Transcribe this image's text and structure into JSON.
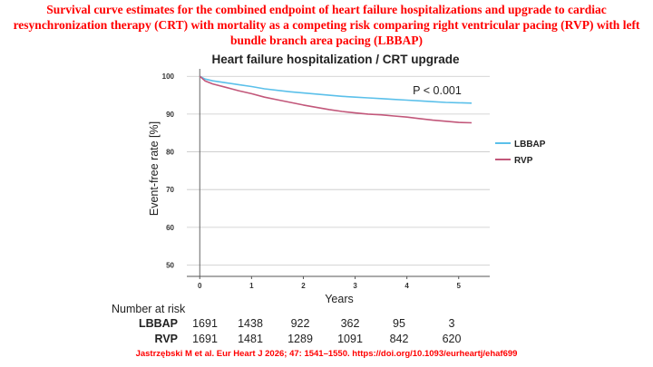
{
  "title": "Survival curve estimates for the combined endpoint of heart failure hospitalizations and upgrade to cardiac resynchronization therapy (CRT) with mortality as a competing risk comparing right ventricular pacing (RVP) with left bundle branch area pacing (LBBAP)",
  "citation": "Jastrzębski M et al.  Eur Heart J 2026; 47: 1541–1550. https://doi.org/10.1093/eurheartj/ehaf699",
  "chart_data": {
    "type": "line",
    "title": "Heart failure hospitalization / CRT upgrade",
    "xlabel": "Years",
    "ylabel": "Event-free rate [%]",
    "xlim": [
      -0.25,
      5.6
    ],
    "ylim": [
      47,
      101.5
    ],
    "x_ticks": [
      0,
      1,
      2,
      3,
      4,
      5
    ],
    "y_ticks": [
      50,
      60,
      70,
      80,
      90,
      100
    ],
    "grid": "horizontal",
    "legend": "right",
    "annotation": "P < 0.001",
    "series": [
      {
        "name": "LBBAP",
        "color": "#5bc0ea",
        "x": [
          0,
          0.1,
          0.25,
          0.5,
          0.75,
          1,
          1.25,
          1.5,
          1.75,
          2,
          2.25,
          2.5,
          2.75,
          3,
          3.25,
          3.5,
          3.75,
          4,
          4.25,
          4.5,
          4.75,
          5,
          5.25
        ],
        "y": [
          100,
          99.3,
          98.8,
          98.3,
          97.8,
          97.3,
          96.7,
          96.3,
          95.9,
          95.6,
          95.3,
          95.0,
          94.7,
          94.5,
          94.3,
          94.1,
          93.9,
          93.7,
          93.5,
          93.3,
          93.1,
          93.0,
          92.9
        ]
      },
      {
        "name": "RVP",
        "color": "#c2577a",
        "x": [
          0,
          0.1,
          0.25,
          0.5,
          0.75,
          1,
          1.25,
          1.5,
          1.75,
          2,
          2.25,
          2.5,
          2.75,
          3,
          3.25,
          3.5,
          3.75,
          4,
          4.25,
          4.5,
          4.75,
          5,
          5.25
        ],
        "y": [
          100,
          98.8,
          98.0,
          97.1,
          96.2,
          95.4,
          94.5,
          93.8,
          93.1,
          92.4,
          91.8,
          91.2,
          90.7,
          90.3,
          90.0,
          89.8,
          89.5,
          89.2,
          88.8,
          88.4,
          88.1,
          87.8,
          87.7
        ]
      }
    ],
    "risk_table": {
      "label": "Number at risk",
      "rows": [
        {
          "name": "LBBAP",
          "values": [
            "1691",
            "1438",
            "922",
            "362",
            "95",
            "3"
          ]
        },
        {
          "name": "RVP",
          "values": [
            "1691",
            "1481",
            "1289",
            "1091",
            "842",
            "620"
          ]
        }
      ]
    }
  }
}
